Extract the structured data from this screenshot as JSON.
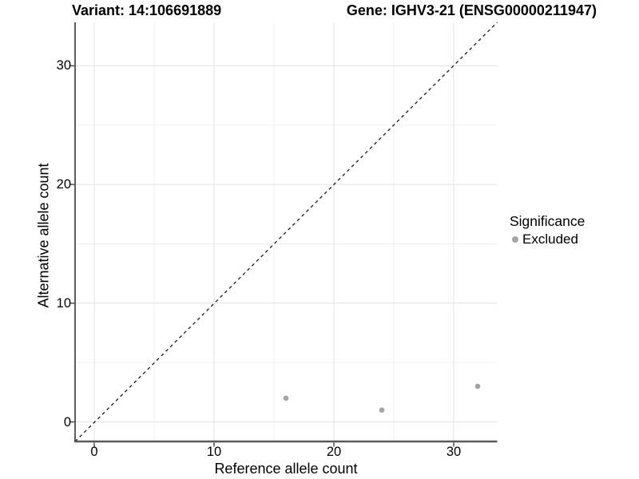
{
  "chart_data": {
    "type": "scatter",
    "title_left": "Variant: 14:106691889",
    "title_right": "Gene: IGHV3-21 (ENSG00000211947)",
    "xlabel": "Reference allele count",
    "ylabel": "Alternative allele count",
    "x_ticks": [
      0,
      10,
      20,
      30
    ],
    "y_ticks": [
      0,
      10,
      20,
      30
    ],
    "x_minor_ticks": [
      5,
      15,
      25
    ],
    "y_minor_ticks": [
      5,
      15,
      25
    ],
    "xlim": [
      -1.6,
      33.65
    ],
    "ylim": [
      -1.65,
      33.65
    ],
    "grid": "major and minor gridlines, white panel background",
    "identity_line": {
      "slope": 1,
      "intercept": 0,
      "style": "dashed"
    },
    "series": [
      {
        "name": "Excluded",
        "points": [
          {
            "x": 16,
            "y": 2
          },
          {
            "x": 24,
            "y": 1
          },
          {
            "x": 32,
            "y": 3
          }
        ]
      }
    ],
    "legend": {
      "title": "Significance",
      "position": "right",
      "entries": [
        {
          "label": "Excluded",
          "color": "#a5a5a5"
        }
      ]
    }
  },
  "colors": {
    "point": "#a5a5a5",
    "grid_major": "#e3e3e3",
    "grid_minor": "#f1f1f1",
    "axis_line_x": "#595959",
    "axis_line_y": "#1a1a1a",
    "tick_mark": "#333333",
    "dashed_line": "#1a1a1a",
    "text": "#000000"
  }
}
